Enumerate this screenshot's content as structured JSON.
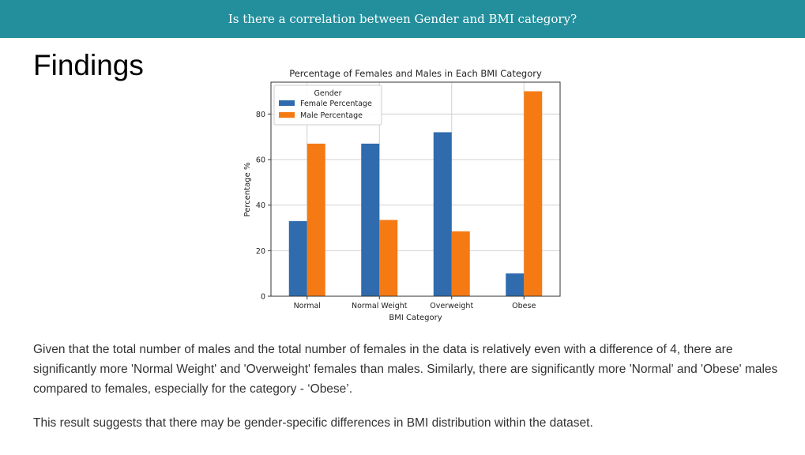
{
  "slide": {
    "banner_title": "Is there a correlation between Gender and BMI category?",
    "heading": "Findings",
    "paragraphs": [
      "Given that the total number of males and the total number of females in the data is relatively even with a difference of 4, there are significantly more 'Normal Weight' and 'Overweight' females than males. Similarly, there are significantly more 'Normal' and 'Obese' males compared to females, especially for the category - ‘Obese’.",
      "This result suggests that there may be gender-specific differences in BMI distribution within the dataset."
    ]
  },
  "colors": {
    "banner": "#238f9c",
    "female": "#2f6bad",
    "male": "#f57a14"
  },
  "chart_data": {
    "type": "bar",
    "title": "Percentage of Females and Males in Each BMI Category",
    "xlabel": "BMI Category",
    "ylabel": "Percentage %",
    "categories": [
      "Normal",
      "Normal Weight",
      "Overweight",
      "Obese"
    ],
    "series": [
      {
        "name": "Female Percentage",
        "values": [
          33,
          67,
          72,
          10
        ]
      },
      {
        "name": "Male Percentage",
        "values": [
          67,
          33.5,
          28.5,
          90
        ]
      }
    ],
    "ylim": [
      0,
      94
    ],
    "yticks": [
      0,
      20,
      40,
      60,
      80
    ],
    "grid": true,
    "legend": {
      "title": "Gender",
      "placement": "top-left"
    }
  }
}
